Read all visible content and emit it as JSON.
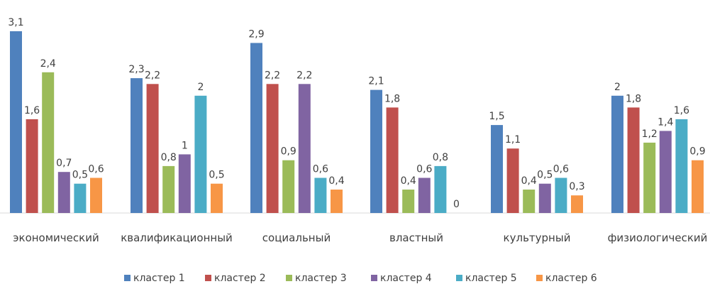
{
  "chart_data": {
    "type": "bar",
    "categories": [
      "экономический",
      "квалификационный",
      "социальный",
      "властный",
      "культурный",
      "физиологический"
    ],
    "series": [
      {
        "name": "кластер 1",
        "color": "#4f81bd",
        "values": [
          3.1,
          2.3,
          2.9,
          2.1,
          1.5,
          2
        ]
      },
      {
        "name": "кластер 2",
        "color": "#c0504d",
        "values": [
          1.6,
          2.2,
          2.2,
          1.8,
          1.1,
          1.8
        ]
      },
      {
        "name": "кластер 3",
        "color": "#9bbb59",
        "values": [
          2.4,
          0.8,
          0.9,
          0.4,
          0.4,
          1.2
        ]
      },
      {
        "name": "кластер 4",
        "color": "#8064a2",
        "values": [
          0.7,
          1,
          2.2,
          0.6,
          0.5,
          1.4
        ]
      },
      {
        "name": "кластер 5",
        "color": "#4bacc6",
        "values": [
          0.5,
          2,
          0.6,
          0.8,
          0.6,
          1.6
        ]
      },
      {
        "name": "кластер 6",
        "color": "#f79646",
        "values": [
          0.6,
          0.5,
          0.4,
          0,
          0.3,
          0.9
        ]
      }
    ],
    "data_labels": [
      [
        "3,1",
        "2,3",
        "2,9",
        "2,1",
        "1,5",
        "2"
      ],
      [
        "1,6",
        "2,2",
        "2,2",
        "1,8",
        "1,1",
        "1,8"
      ],
      [
        "2,4",
        "0,8",
        "0,9",
        "0,4",
        "0,4",
        "1,2"
      ],
      [
        "0,7",
        "1",
        "2,2",
        "0,6",
        "0,5",
        "1,4"
      ],
      [
        "0,5",
        "2",
        "0,6",
        "0,8",
        "0,6",
        "1,6"
      ],
      [
        "0,6",
        "0,5",
        "0,4",
        "0",
        "0,3",
        "0,9"
      ]
    ],
    "ylim": [
      0,
      3.1
    ],
    "grid": false,
    "legend_position": "bottom",
    "title": "",
    "xlabel": "",
    "ylabel": ""
  }
}
